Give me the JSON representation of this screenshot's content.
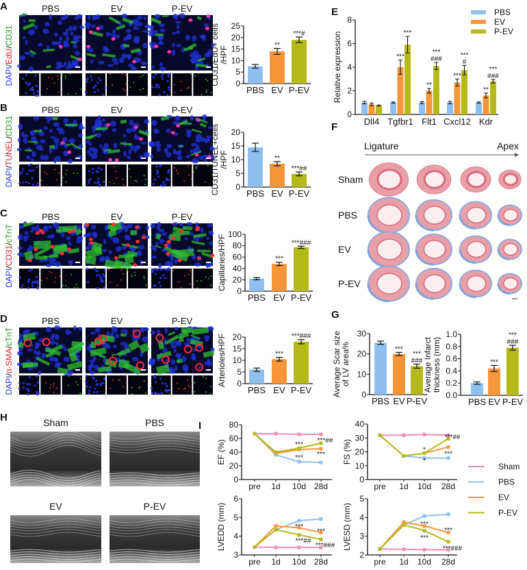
{
  "colors": {
    "sham": "#f08cb8",
    "pbs": "#8fbfef",
    "ev": "#f7953a",
    "pev": "#b5b91a"
  },
  "panel_letters": [
    "A",
    "B",
    "C",
    "D",
    "E",
    "F",
    "G",
    "H",
    "I"
  ],
  "micrographs": {
    "columns": [
      "PBS",
      "EV",
      "P-EV"
    ],
    "rows": [
      {
        "stain": [
          [
            "DAPI",
            "#2233ff"
          ],
          [
            "/",
            ""
          ],
          [
            "EdU",
            "#e8202a"
          ],
          [
            "/",
            ""
          ],
          [
            "CD31",
            "#1aa01a"
          ]
        ]
      },
      {
        "stain": [
          [
            "DAPI",
            "#2233ff"
          ],
          [
            "/",
            ""
          ],
          [
            "TUNEL",
            "#e8202a"
          ],
          [
            "/",
            ""
          ],
          [
            "CD31",
            "#1aa01a"
          ]
        ]
      },
      {
        "stain": [
          [
            "DAPI",
            "#2233ff"
          ],
          [
            "/",
            ""
          ],
          [
            "CD31",
            "#e8202a"
          ],
          [
            "/",
            ""
          ],
          [
            "cTnT",
            "#1aa01a"
          ]
        ]
      },
      {
        "stain": [
          [
            "DAPI",
            "#2233ff"
          ],
          [
            "/",
            ""
          ],
          [
            "α-SMA",
            "#e8202a"
          ],
          [
            "/",
            ""
          ],
          [
            "cTnT",
            "#1aa01a"
          ]
        ]
      }
    ]
  },
  "chart_data": [
    {
      "id": "A",
      "type": "bar",
      "ylabel": [
        "CD31/EdU+ cells",
        "/HPF"
      ],
      "categories": [
        "PBS",
        "EV",
        "P-EV"
      ],
      "values": [
        7.5,
        14,
        19
      ],
      "errors": [
        0.8,
        1.3,
        1.2
      ],
      "sig": [
        "",
        "**",
        "***#"
      ],
      "ylim": [
        0,
        25
      ],
      "yticks": [
        0,
        5,
        10,
        15,
        20,
        25
      ]
    },
    {
      "id": "B",
      "type": "bar",
      "ylabel": [
        "CD31/TUNEL+cells",
        "/HPF"
      ],
      "categories": [
        "PBS",
        "EV",
        "P-EV"
      ],
      "values": [
        14.5,
        8.5,
        4.8
      ],
      "errors": [
        1.5,
        0.8,
        0.7
      ],
      "sig": [
        "",
        "**",
        "***##"
      ],
      "ylim": [
        0,
        20
      ],
      "yticks": [
        0,
        5,
        10,
        15,
        20
      ]
    },
    {
      "id": "C",
      "type": "bar",
      "ylabel": [
        "Capillaries/HPF"
      ],
      "categories": [
        "PBS",
        "EV",
        "P-EV"
      ],
      "values": [
        22,
        48,
        77
      ],
      "errors": [
        2,
        3,
        2
      ],
      "sig": [
        "",
        "***",
        "***###"
      ],
      "ylim": [
        0,
        100
      ],
      "yticks": [
        0,
        20,
        40,
        60,
        80,
        100
      ]
    },
    {
      "id": "D",
      "type": "bar",
      "ylabel": [
        "Arterioles/HPF"
      ],
      "categories": [
        "PBS",
        "EV",
        "P-EV"
      ],
      "values": [
        6,
        10.5,
        18
      ],
      "errors": [
        0.7,
        0.8,
        0.9
      ],
      "sig": [
        "",
        "***",
        "***###"
      ],
      "ylim": [
        0,
        20
      ],
      "yticks": [
        0,
        5,
        10,
        15,
        20
      ]
    },
    {
      "id": "E",
      "type": "grouped-bar",
      "ylabel": [
        "Relative expression"
      ],
      "categories": [
        "Dll4",
        "Tgfbr1",
        "Flt1",
        "Cxcl12",
        "Kdr"
      ],
      "ylim": [
        0,
        8
      ],
      "yticks": [
        0,
        2,
        4,
        6,
        8
      ],
      "series": [
        {
          "name": "PBS",
          "values": [
            1,
            1,
            1,
            1,
            1
          ],
          "errors": [
            0.1,
            0.06,
            0.08,
            0.1,
            0.05
          ],
          "sig": [
            "",
            "",
            "",
            "",
            ""
          ]
        },
        {
          "name": "EV",
          "values": [
            0.85,
            4.0,
            2.0,
            2.7,
            1.6
          ],
          "errors": [
            0.12,
            0.6,
            0.2,
            0.3,
            0.2
          ],
          "sig": [
            "",
            "***",
            "**",
            "***",
            "**"
          ]
        },
        {
          "name": "P-EV",
          "values": [
            0.75,
            5.9,
            4.1,
            3.75,
            2.8
          ],
          "errors": [
            0.05,
            0.7,
            0.3,
            0.4,
            0.15
          ],
          "sig": [
            "",
            "***",
            "***|###",
            "***|#",
            "***|###"
          ]
        }
      ],
      "legend": "top-right"
    },
    {
      "id": "G1",
      "type": "bar",
      "ylabel": [
        "Average Scar size",
        "of LV area%"
      ],
      "categories": [
        "PBS",
        "EV",
        "P-EV"
      ],
      "values": [
        25.5,
        20,
        14
      ],
      "errors": [
        0.8,
        0.8,
        1.0
      ],
      "sig": [
        "",
        "***",
        "***|###"
      ],
      "ylim": [
        0,
        30
      ],
      "yticks": [
        0,
        10,
        20,
        30
      ]
    },
    {
      "id": "G2",
      "type": "bar",
      "ylabel": [
        "Average Infarct",
        "thickness (mm)"
      ],
      "categories": [
        "PBS",
        "EV",
        "P-EV"
      ],
      "values": [
        0.2,
        0.44,
        0.78
      ],
      "errors": [
        0.02,
        0.05,
        0.04
      ],
      "sig": [
        "",
        "***",
        "***|###"
      ],
      "ylim": [
        0,
        1.0
      ],
      "yticks": [
        0,
        0.2,
        0.4,
        0.6,
        0.8,
        1.0
      ],
      "tickfmt": 1
    },
    {
      "id": "EF",
      "type": "line",
      "ylabel": "EF (%)",
      "x": [
        "pre",
        "1d",
        "10d",
        "28d"
      ],
      "ylim": [
        0,
        80
      ],
      "yticks": [
        0,
        20,
        40,
        60,
        80
      ],
      "series": [
        {
          "name": "Sham",
          "values": [
            67,
            67,
            66,
            66
          ]
        },
        {
          "name": "PBS",
          "values": [
            67,
            36,
            26,
            25
          ]
        },
        {
          "name": "EV",
          "values": [
            67,
            38,
            44,
            45
          ]
        },
        {
          "name": "P-EV",
          "values": [
            67,
            40,
            46,
            53
          ]
        }
      ],
      "annotations": [
        {
          "x": "10d",
          "y": 52,
          "text": "***"
        },
        {
          "x": "10d",
          "y": 33,
          "text": "***"
        },
        {
          "x": "28d",
          "y": 58,
          "text": "***##"
        },
        {
          "x": "28d",
          "y": 38,
          "text": "***"
        }
      ]
    },
    {
      "id": "FS",
      "type": "line",
      "ylabel": "FS (%)",
      "x": [
        "pre",
        "1d",
        "10d",
        "28d"
      ],
      "ylim": [
        0,
        40
      ],
      "yticks": [
        0,
        10,
        20,
        30,
        40
      ],
      "series": [
        {
          "name": "Sham",
          "values": [
            32,
            32,
            32.5,
            32
          ]
        },
        {
          "name": "PBS",
          "values": [
            32,
            17,
            15.5,
            15.5
          ]
        },
        {
          "name": "EV",
          "values": [
            32,
            17,
            19,
            23.5
          ]
        },
        {
          "name": "P-EV",
          "values": [
            32,
            17,
            19,
            29.5
          ]
        }
      ],
      "annotations": [
        {
          "x": "10d",
          "y": 22,
          "text": "*"
        },
        {
          "x": "10d",
          "y": 14,
          "text": "*"
        },
        {
          "x": "28d",
          "y": 31,
          "text": "***##"
        },
        {
          "x": "28d",
          "y": 19,
          "text": "***"
        }
      ]
    },
    {
      "id": "LVEDD",
      "type": "line",
      "ylabel": "LVEDD (mm)",
      "x": [
        "pre",
        "1d",
        "10d",
        "28d"
      ],
      "ylim": [
        3,
        6
      ],
      "yticks": [
        3,
        4,
        5,
        6
      ],
      "series": [
        {
          "name": "Sham",
          "values": [
            3.42,
            3.4,
            3.4,
            3.4
          ]
        },
        {
          "name": "PBS",
          "values": [
            3.42,
            4.35,
            4.83,
            4.92
          ]
        },
        {
          "name": "EV",
          "values": [
            3.42,
            4.55,
            4.45,
            4.2
          ]
        },
        {
          "name": "P-EV",
          "values": [
            3.42,
            4.35,
            4.07,
            3.83
          ]
        }
      ],
      "annotations": [
        {
          "x": "10d",
          "y": 4.55,
          "text": "***"
        },
        {
          "x": "10d",
          "y": 3.78,
          "text": "***##"
        },
        {
          "x": "28d",
          "y": 4.3,
          "text": "***"
        },
        {
          "x": "28d",
          "y": 3.55,
          "text": "***###"
        }
      ]
    },
    {
      "id": "LVESD",
      "type": "line",
      "ylabel": "LVESD (mm)",
      "x": [
        "pre",
        "1d",
        "10d",
        "28d"
      ],
      "ylim": [
        2,
        5
      ],
      "yticks": [
        2,
        3,
        4,
        5
      ],
      "series": [
        {
          "name": "Sham",
          "values": [
            2.32,
            2.3,
            2.28,
            2.28
          ]
        },
        {
          "name": "PBS",
          "values": [
            2.32,
            3.6,
            4.08,
            4.17
          ]
        },
        {
          "name": "EV",
          "values": [
            2.32,
            3.75,
            3.55,
            3.2
          ]
        },
        {
          "name": "P-EV",
          "values": [
            2.32,
            3.6,
            3.3,
            2.7
          ]
        }
      ],
      "annotations": [
        {
          "x": "10d",
          "y": 3.68,
          "text": "***"
        },
        {
          "x": "10d",
          "y": 2.95,
          "text": "***"
        },
        {
          "x": "28d",
          "y": 3.35,
          "text": "***"
        },
        {
          "x": "28d",
          "y": 2.38,
          "text": "***###"
        }
      ]
    }
  ],
  "panel_f": {
    "start": "Ligature",
    "end": "Apex",
    "rows": [
      "Sham",
      "PBS",
      "EV",
      "P-EV"
    ]
  },
  "panel_h": {
    "labels": [
      "Sham",
      "PBS",
      "EV",
      "P-EV"
    ]
  },
  "legend_i": [
    "Sham",
    "PBS",
    "EV",
    "P-EV"
  ]
}
